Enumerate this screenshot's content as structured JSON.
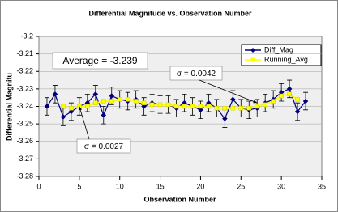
{
  "chart_data": {
    "type": "line",
    "title": "Differential Magnitude vs. Observation Number",
    "x_label": "Observation Number",
    "y_label": "Differential Magnitu",
    "xlim": [
      0,
      35
    ],
    "xticks": [
      0,
      5,
      10,
      15,
      20,
      25,
      30,
      35
    ],
    "ylim": [
      -3.28,
      -3.2
    ],
    "yticks": [
      -3.2,
      -3.21,
      -3.22,
      -3.23,
      -3.24,
      -3.25,
      -3.26,
      -3.27,
      -3.28
    ],
    "grid": true,
    "legend": "upper right",
    "annotations": [
      "Average = -3.239",
      "σ = 0.0042",
      "σ = 0.0027"
    ],
    "series": [
      {
        "name": "Diff_Mag",
        "color": "#000080",
        "x": [
          1,
          2,
          3,
          4,
          5,
          6,
          7,
          8,
          9,
          10,
          11,
          12,
          13,
          14,
          15,
          16,
          17,
          18,
          19,
          20,
          21,
          22,
          23,
          24,
          25,
          26,
          27,
          28,
          29,
          30,
          31,
          32,
          33
        ],
        "values": [
          -3.24,
          -3.233,
          -3.246,
          -3.243,
          -3.24,
          -3.238,
          -3.233,
          -3.245,
          -3.234,
          -3.236,
          -3.237,
          -3.236,
          -3.24,
          -3.238,
          -3.239,
          -3.239,
          -3.241,
          -3.238,
          -3.24,
          -3.242,
          -3.238,
          -3.241,
          -3.247,
          -3.236,
          -3.241,
          -3.242,
          -3.241,
          -3.238,
          -3.236,
          -3.232,
          -3.23,
          -3.243,
          -3.237
        ],
        "errors": [
          0.005,
          0.005,
          0.005,
          0.005,
          0.005,
          0.005,
          0.005,
          0.005,
          0.005,
          0.005,
          0.005,
          0.005,
          0.005,
          0.005,
          0.005,
          0.005,
          0.005,
          0.005,
          0.005,
          0.005,
          0.005,
          0.005,
          0.005,
          0.005,
          0.005,
          0.005,
          0.005,
          0.005,
          0.005,
          0.005,
          0.005,
          0.005,
          0.005
        ]
      },
      {
        "name": "Running_Avg",
        "color": "#ffff00",
        "x": [
          3,
          4,
          5,
          6,
          7,
          8,
          9,
          10,
          11,
          12,
          13,
          14,
          15,
          16,
          17,
          18,
          19,
          20,
          21,
          22,
          23,
          24,
          25,
          26,
          27,
          28,
          29,
          30,
          31,
          32
        ],
        "values": [
          -3.24,
          -3.241,
          -3.24,
          -3.24,
          -3.238,
          -3.237,
          -3.237,
          -3.236,
          -3.236,
          -3.237,
          -3.238,
          -3.239,
          -3.239,
          -3.239,
          -3.24,
          -3.24,
          -3.24,
          -3.24,
          -3.24,
          -3.241,
          -3.241,
          -3.241,
          -3.241,
          -3.241,
          -3.24,
          -3.239,
          -3.237,
          -3.234,
          -3.233,
          -3.236
        ]
      }
    ]
  }
}
